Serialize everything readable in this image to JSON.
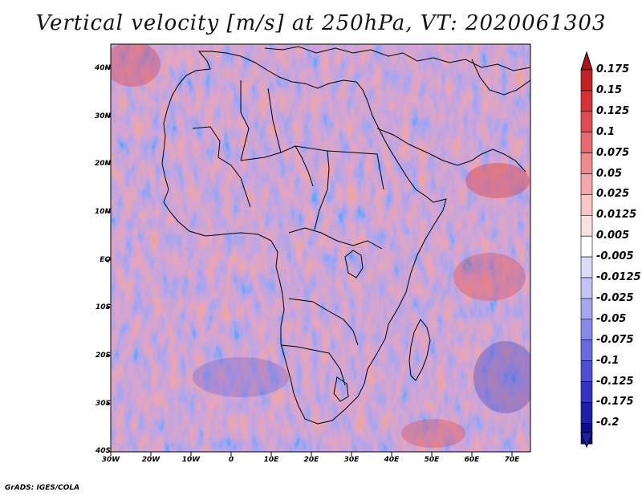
{
  "title": "Vertical velocity [m/s] at 250hPa, VT: 2020061303",
  "lat_labels": [
    "40N",
    "30N",
    "20N",
    "10N",
    "EQ",
    "10S",
    "20S",
    "30S",
    "40S"
  ],
  "lon_labels": [
    "30W",
    "20W",
    "10W",
    "0",
    "10E",
    "20E",
    "30E",
    "40E",
    "50E",
    "60E",
    "70E"
  ],
  "colorbar": {
    "labels": [
      "0.175",
      "0.15",
      "0.125",
      "0.1",
      "0.075",
      "0.05",
      "0.025",
      "0.0125",
      "0.005",
      "-0.005",
      "-0.0125",
      "-0.025",
      "-0.05",
      "-0.075",
      "-0.1",
      "-0.125",
      "-0.175",
      "-0.2"
    ],
    "colors": [
      "#c02228",
      "#d23238",
      "#de4c52",
      "#e86a70",
      "#f08a8e",
      "#f5a8ab",
      "#f9c6c8",
      "#fce0e1",
      "#ffffff",
      "#dcdcfa",
      "#c3c3f5",
      "#a6a6ee",
      "#8888e6",
      "#6a6adc",
      "#4e4ed0",
      "#3434c0",
      "#1e1ea8",
      "#0e0e88"
    ],
    "top_arrow_color": "#a8141a",
    "bottom_arrow_color": "#20209c"
  },
  "credit": "GrADS: IGES/COLA"
}
